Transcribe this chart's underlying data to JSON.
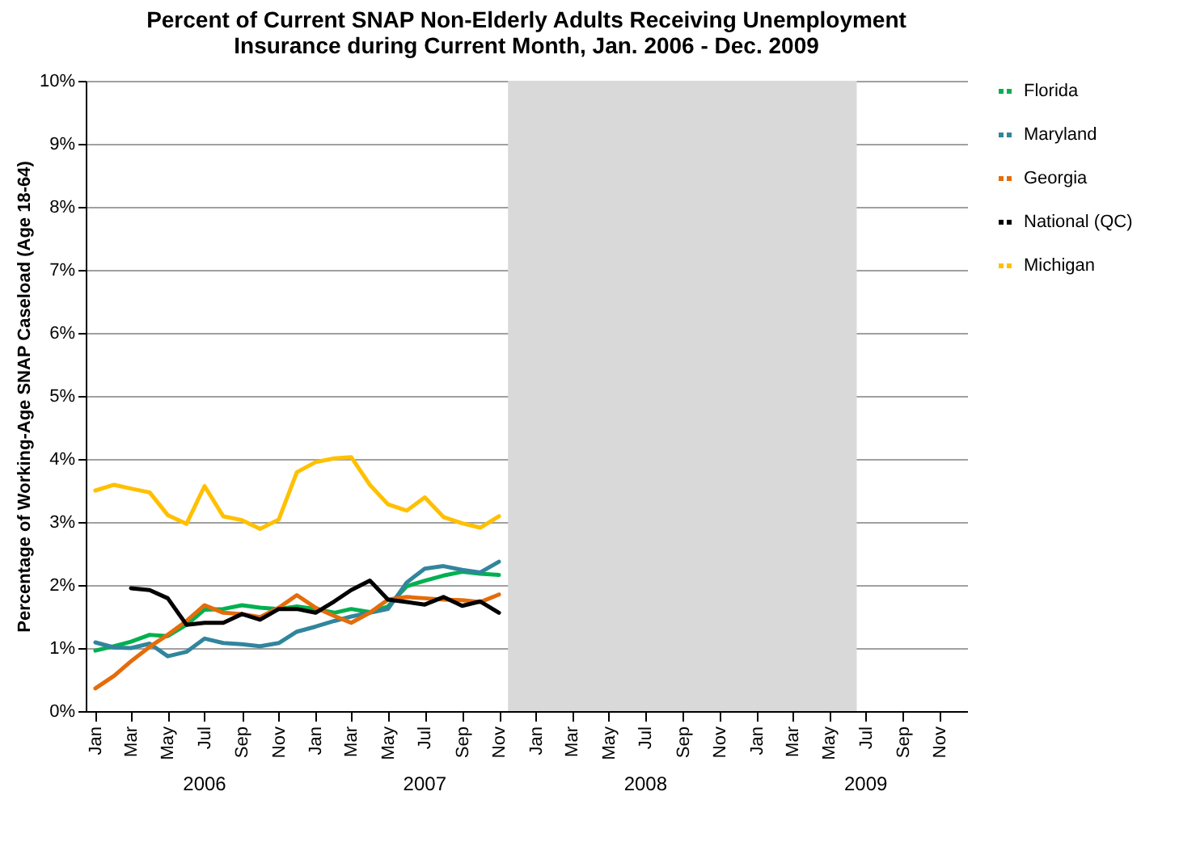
{
  "chart_data": {
    "type": "line",
    "title": "Percent of Current SNAP Non-Elderly Adults Receiving Unemployment\nInsurance during Current Month, Jan. 2006 - Dec. 2009",
    "ylabel": "Percentage of Working-Age SNAP Caseload (Age 18-64)",
    "x": [
      "2006-01",
      "2006-02",
      "2006-03",
      "2006-04",
      "2006-05",
      "2006-06",
      "2006-07",
      "2006-08",
      "2006-09",
      "2006-10",
      "2006-11",
      "2006-12",
      "2007-01",
      "2007-02",
      "2007-03",
      "2007-04",
      "2007-05",
      "2007-06",
      "2007-07",
      "2007-08",
      "2007-09",
      "2007-10",
      "2007-11"
    ],
    "series": [
      {
        "name": "Florida",
        "color": "#00b050",
        "values": [
          0.96,
          1.03,
          1.1,
          1.21,
          1.19,
          1.37,
          1.61,
          1.62,
          1.68,
          1.64,
          1.62,
          1.66,
          1.62,
          1.56,
          1.62,
          1.57,
          1.66,
          1.98,
          2.07,
          2.15,
          2.21,
          2.18,
          2.16
        ]
      },
      {
        "name": "Maryland",
        "color": "#31859c",
        "values": [
          1.09,
          1.01,
          1.0,
          1.07,
          0.87,
          0.94,
          1.15,
          1.08,
          1.06,
          1.03,
          1.08,
          1.26,
          1.34,
          1.43,
          1.5,
          1.56,
          1.62,
          2.04,
          2.26,
          2.3,
          2.24,
          2.2,
          2.37
        ]
      },
      {
        "name": "Georgia",
        "color": "#e46c0a",
        "values": [
          0.36,
          0.56,
          0.79,
          1.02,
          1.21,
          1.43,
          1.68,
          1.56,
          1.54,
          1.49,
          1.64,
          1.84,
          1.64,
          1.51,
          1.4,
          1.56,
          1.77,
          1.81,
          1.79,
          1.77,
          1.76,
          1.73,
          1.85
        ]
      },
      {
        "name": "National (QC)",
        "color": "#000000",
        "values": [
          null,
          null,
          1.95,
          1.92,
          1.79,
          1.37,
          1.4,
          1.4,
          1.54,
          1.45,
          1.62,
          1.62,
          1.56,
          1.74,
          1.92,
          2.07,
          1.77,
          1.73,
          1.69,
          1.81,
          1.67,
          1.74,
          1.56
        ]
      },
      {
        "name": "Michigan",
        "color": "#ffc000",
        "values": [
          3.5,
          3.59,
          3.53,
          3.47,
          3.11,
          2.97,
          3.57,
          3.09,
          3.03,
          2.89,
          3.04,
          3.79,
          3.95,
          4.01,
          4.03,
          3.59,
          3.28,
          3.18,
          3.39,
          3.08,
          2.98,
          2.91,
          3.09
        ]
      }
    ],
    "xlim": [
      "2005-12-16",
      "2009-12-16"
    ],
    "xticks": [
      {
        "value": "2006-01",
        "label": "Jan"
      },
      {
        "value": "2006-03",
        "label": "Mar"
      },
      {
        "value": "2006-05",
        "label": "May"
      },
      {
        "value": "2006-07",
        "label": "Jul"
      },
      {
        "value": "2006-09",
        "label": "Sep"
      },
      {
        "value": "2006-11",
        "label": "Nov"
      },
      {
        "value": "2007-01",
        "label": "Jan"
      },
      {
        "value": "2007-03",
        "label": "Mar"
      },
      {
        "value": "2007-05",
        "label": "May"
      },
      {
        "value": "2007-07",
        "label": "Jul"
      },
      {
        "value": "2007-09",
        "label": "Sep"
      },
      {
        "value": "2007-11",
        "label": "Nov"
      },
      {
        "value": "2008-01",
        "label": "Jan"
      },
      {
        "value": "2008-03",
        "label": "Mar"
      },
      {
        "value": "2008-05",
        "label": "May"
      },
      {
        "value": "2008-07",
        "label": "Jul"
      },
      {
        "value": "2008-09",
        "label": "Sep"
      },
      {
        "value": "2008-11",
        "label": "Nov"
      },
      {
        "value": "2009-01",
        "label": "Jan"
      },
      {
        "value": "2009-03",
        "label": "Mar"
      },
      {
        "value": "2009-05",
        "label": "May"
      },
      {
        "value": "2009-07",
        "label": "Jul"
      },
      {
        "value": "2009-09",
        "label": "Sep"
      },
      {
        "value": "2009-11",
        "label": "Nov"
      }
    ],
    "ylim": [
      0,
      10
    ],
    "yticks": [
      {
        "value": 0,
        "label": "0%"
      },
      {
        "value": 1,
        "label": "1%"
      },
      {
        "value": 2,
        "label": "2%"
      },
      {
        "value": 3,
        "label": "3%"
      },
      {
        "value": 4,
        "label": "4%"
      },
      {
        "value": 5,
        "label": "5%"
      },
      {
        "value": 6,
        "label": "6%"
      },
      {
        "value": 7,
        "label": "7%"
      },
      {
        "value": 8,
        "label": "8%"
      },
      {
        "value": 9,
        "label": "9%"
      },
      {
        "value": 10,
        "label": "10%"
      }
    ],
    "bands": [
      {
        "axis": "x",
        "from": "2007-11-16",
        "to": "2009-06-16",
        "color": "#d9d9d9"
      }
    ],
    "annotations": [
      "2006",
      "2007",
      "2008",
      "2009"
    ],
    "grid": "y",
    "legend": "right",
    "marker": "none",
    "line_style": "solid"
  }
}
